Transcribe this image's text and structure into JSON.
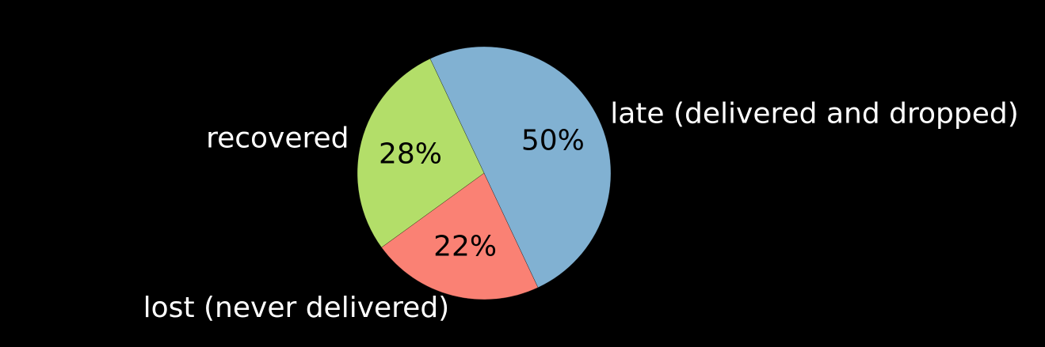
{
  "chart_data": {
    "type": "pie",
    "title": "",
    "start_angle_deg": 216,
    "direction": "counterclockwise",
    "slices": [
      {
        "label": "lost (never delivered)",
        "value": 22,
        "percent_label": "22%",
        "color": "#fa8174"
      },
      {
        "label": "late (delivered and dropped)",
        "value": 50,
        "percent_label": "50%",
        "color": "#81b1d2"
      },
      {
        "label": "recovered",
        "value": 28,
        "percent_label": "28%",
        "color": "#b3de69"
      }
    ]
  },
  "theme": {
    "background": "#000000",
    "text_color": "#ffffff",
    "percent_text_color": "#000000"
  }
}
